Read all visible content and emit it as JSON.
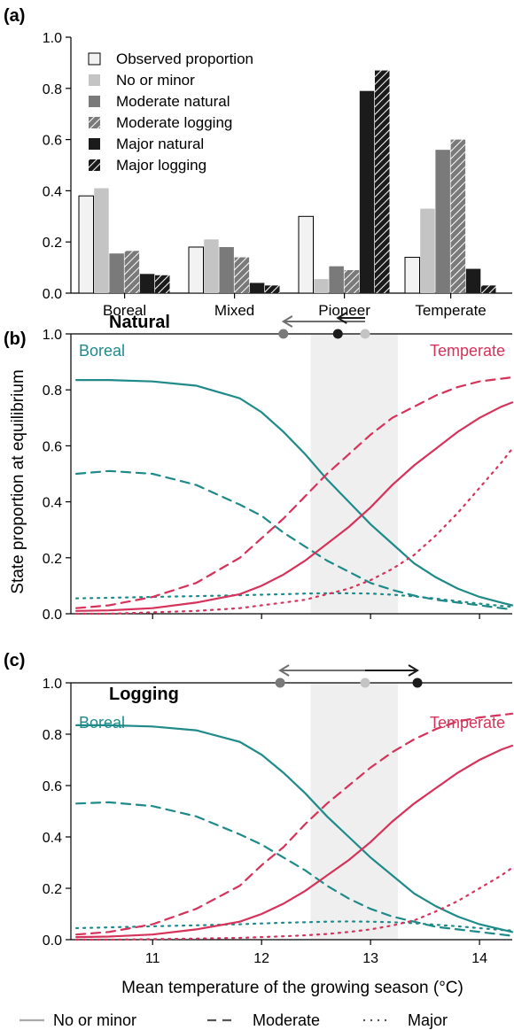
{
  "colors": {
    "boreal": "#1f8a8a",
    "temperate": "#d6325a",
    "observed": "#f2f2f2",
    "no_or_minor": "#c4c4c4",
    "moderate": "#7a7a7a",
    "major": "#1b1b1b",
    "arrow_natural": "#6e6e6e",
    "arrow_major": "#1b1b1b",
    "shade": "#efefef"
  },
  "panel_a": {
    "label": "(a)",
    "legend": [
      {
        "label": "Observed proportion",
        "style": "observed"
      },
      {
        "label": "No or minor",
        "style": "no_or_minor"
      },
      {
        "label": "Moderate natural",
        "style": "mod_nat"
      },
      {
        "label": "Moderate logging",
        "style": "mod_log"
      },
      {
        "label": "Major natural",
        "style": "maj_nat"
      },
      {
        "label": "Major logging",
        "style": "maj_log"
      }
    ],
    "yticks": [
      "0.0",
      "0.2",
      "0.4",
      "0.6",
      "0.8",
      "1.0"
    ]
  },
  "panel_b": {
    "label": "(b)",
    "title": "Natural",
    "left_label": "Boreal",
    "right_label": "Temperate",
    "arrow_points": {
      "no_or_minor": 12.95,
      "moderate": 12.2,
      "major": 12.7
    }
  },
  "panel_c": {
    "label": "(c)",
    "title": "Logging",
    "left_label": "Boreal",
    "right_label": "Temperate",
    "arrow_points": {
      "no_or_minor": 12.95,
      "moderate": 12.17,
      "major": 13.43
    }
  },
  "shared": {
    "ylabel": "State proportion at equilibrium",
    "xlabel": "Mean temperature of the growing season (°C)",
    "line_yticks": [
      "0.0",
      "0.2",
      "0.4",
      "0.6",
      "0.8",
      "1.0"
    ],
    "xticks": [
      "11",
      "12",
      "13",
      "14"
    ],
    "bottom_legend": [
      {
        "label": "No or minor",
        "dash": "solid"
      },
      {
        "label": "Moderate",
        "dash": "dashed"
      },
      {
        "label": "Major",
        "dash": "dotted"
      }
    ]
  },
  "chart_data": [
    {
      "type": "bar",
      "categories": [
        "Boreal",
        "Mixed",
        "Pioneer",
        "Temperate"
      ],
      "ylim": [
        0,
        1
      ],
      "series": [
        {
          "name": "Observed proportion",
          "values": [
            0.38,
            0.18,
            0.3,
            0.14
          ]
        },
        {
          "name": "No or minor",
          "values": [
            0.41,
            0.21,
            0.055,
            0.33
          ]
        },
        {
          "name": "Moderate natural",
          "values": [
            0.155,
            0.18,
            0.105,
            0.56
          ]
        },
        {
          "name": "Moderate logging",
          "values": [
            0.165,
            0.14,
            0.09,
            0.6
          ]
        },
        {
          "name": "Major natural",
          "values": [
            0.075,
            0.04,
            0.79,
            0.095
          ]
        },
        {
          "name": "Major logging",
          "values": [
            0.07,
            0.03,
            0.87,
            0.03
          ]
        }
      ]
    },
    {
      "type": "line",
      "title": "Natural",
      "xlim": [
        10.25,
        14.3
      ],
      "ylim": [
        0,
        1
      ],
      "shaded_band": [
        12.45,
        13.25
      ],
      "x": [
        10.3,
        10.6,
        11.0,
        11.4,
        11.8,
        12.0,
        12.2,
        12.4,
        12.6,
        12.8,
        13.0,
        13.2,
        13.4,
        13.6,
        13.8,
        14.0,
        14.2,
        14.3
      ],
      "series": [
        {
          "group": "Boreal",
          "disturbance": "No or minor",
          "values": [
            0.835,
            0.835,
            0.83,
            0.815,
            0.77,
            0.72,
            0.65,
            0.57,
            0.48,
            0.4,
            0.32,
            0.25,
            0.18,
            0.13,
            0.09,
            0.06,
            0.04,
            0.03
          ]
        },
        {
          "group": "Boreal",
          "disturbance": "Moderate",
          "values": [
            0.5,
            0.51,
            0.5,
            0.46,
            0.39,
            0.35,
            0.29,
            0.24,
            0.19,
            0.15,
            0.11,
            0.085,
            0.065,
            0.05,
            0.04,
            0.03,
            0.02,
            0.015
          ]
        },
        {
          "group": "Boreal",
          "disturbance": "Major",
          "values": [
            0.055,
            0.057,
            0.06,
            0.063,
            0.066,
            0.068,
            0.07,
            0.072,
            0.073,
            0.073,
            0.072,
            0.068,
            0.062,
            0.054,
            0.045,
            0.036,
            0.028,
            0.025
          ]
        },
        {
          "group": "Temperate",
          "disturbance": "No or minor",
          "values": [
            0.01,
            0.012,
            0.02,
            0.04,
            0.07,
            0.1,
            0.14,
            0.19,
            0.25,
            0.31,
            0.38,
            0.46,
            0.53,
            0.59,
            0.65,
            0.7,
            0.74,
            0.755
          ]
        },
        {
          "group": "Temperate",
          "disturbance": "Moderate",
          "values": [
            0.02,
            0.03,
            0.06,
            0.11,
            0.2,
            0.27,
            0.34,
            0.42,
            0.5,
            0.57,
            0.64,
            0.7,
            0.74,
            0.78,
            0.81,
            0.83,
            0.84,
            0.845
          ]
        },
        {
          "group": "Temperate",
          "disturbance": "Major",
          "values": [
            0.0,
            0.0,
            0.005,
            0.01,
            0.02,
            0.03,
            0.04,
            0.05,
            0.07,
            0.09,
            0.12,
            0.16,
            0.21,
            0.28,
            0.36,
            0.45,
            0.54,
            0.59
          ]
        }
      ]
    },
    {
      "type": "line",
      "title": "Logging",
      "xlim": [
        10.25,
        14.3
      ],
      "ylim": [
        0,
        1
      ],
      "shaded_band": [
        12.45,
        13.25
      ],
      "x": [
        10.3,
        10.6,
        11.0,
        11.4,
        11.8,
        12.0,
        12.2,
        12.4,
        12.6,
        12.8,
        13.0,
        13.2,
        13.4,
        13.6,
        13.8,
        14.0,
        14.2,
        14.3
      ],
      "series": [
        {
          "group": "Boreal",
          "disturbance": "No or minor",
          "values": [
            0.835,
            0.835,
            0.83,
            0.815,
            0.77,
            0.72,
            0.65,
            0.57,
            0.48,
            0.4,
            0.32,
            0.25,
            0.18,
            0.13,
            0.09,
            0.06,
            0.04,
            0.03
          ]
        },
        {
          "group": "Boreal",
          "disturbance": "Moderate",
          "values": [
            0.53,
            0.535,
            0.52,
            0.48,
            0.41,
            0.37,
            0.32,
            0.27,
            0.21,
            0.16,
            0.12,
            0.09,
            0.07,
            0.05,
            0.04,
            0.03,
            0.02,
            0.015
          ]
        },
        {
          "group": "Boreal",
          "disturbance": "Major",
          "values": [
            0.045,
            0.048,
            0.052,
            0.056,
            0.06,
            0.063,
            0.066,
            0.068,
            0.07,
            0.071,
            0.07,
            0.068,
            0.064,
            0.058,
            0.052,
            0.045,
            0.038,
            0.035
          ]
        },
        {
          "group": "Temperate",
          "disturbance": "No or minor",
          "values": [
            0.01,
            0.012,
            0.02,
            0.04,
            0.07,
            0.1,
            0.14,
            0.19,
            0.25,
            0.31,
            0.38,
            0.46,
            0.53,
            0.59,
            0.65,
            0.7,
            0.74,
            0.755
          ]
        },
        {
          "group": "Temperate",
          "disturbance": "Moderate",
          "values": [
            0.02,
            0.03,
            0.06,
            0.12,
            0.21,
            0.29,
            0.36,
            0.45,
            0.53,
            0.6,
            0.67,
            0.73,
            0.78,
            0.82,
            0.85,
            0.865,
            0.875,
            0.88
          ]
        },
        {
          "group": "Temperate",
          "disturbance": "Major",
          "values": [
            0.0,
            0.0,
            0.002,
            0.004,
            0.007,
            0.01,
            0.013,
            0.017,
            0.022,
            0.03,
            0.04,
            0.055,
            0.075,
            0.11,
            0.15,
            0.2,
            0.25,
            0.28
          ]
        }
      ]
    }
  ]
}
